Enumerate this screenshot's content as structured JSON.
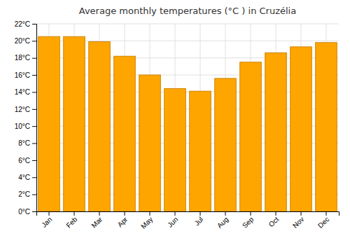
{
  "chart_data": {
    "type": "bar",
    "title": "Average monthly temperatures (°C ) in Cruzélia",
    "categories": [
      "Jan",
      "Feb",
      "Mar",
      "Apr",
      "May",
      "Jun",
      "Jul",
      "Aug",
      "Sep",
      "Oct",
      "Nov",
      "Dec"
    ],
    "values": [
      20.5,
      20.5,
      19.9,
      18.2,
      16.0,
      14.4,
      14.1,
      15.6,
      17.5,
      18.6,
      19.3,
      19.8
    ],
    "color": "#FFA500",
    "ylim": [
      0,
      22
    ],
    "yticks": [
      {
        "value": 0,
        "label": "0°C"
      },
      {
        "value": 2,
        "label": "2°C"
      },
      {
        "value": 4,
        "label": "4°C"
      },
      {
        "value": 6,
        "label": "6°C"
      },
      {
        "value": 8,
        "label": "8°C"
      },
      {
        "value": 10,
        "label": "10°C"
      },
      {
        "value": 12,
        "label": "12°C"
      },
      {
        "value": 14,
        "label": "14°C"
      },
      {
        "value": 16,
        "label": "16°C"
      },
      {
        "value": 18,
        "label": "18°C"
      },
      {
        "value": 20,
        "label": "20°C"
      },
      {
        "value": 22,
        "label": "22°C"
      }
    ],
    "grid": true
  }
}
